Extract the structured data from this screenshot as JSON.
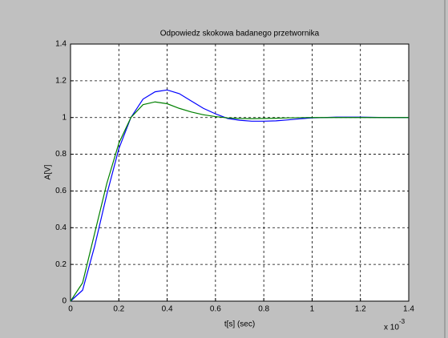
{
  "chart_data": {
    "type": "line",
    "title": "Odpowiedz skokowa badanego przetwornika",
    "x_label": "t[s] (sec)",
    "y_label": "A[V]",
    "x_exponent_base": "x 10",
    "x_exponent": "-3",
    "x": [
      0,
      0.05,
      0.1,
      0.15,
      0.2,
      0.25,
      0.3,
      0.35,
      0.4,
      0.45,
      0.5,
      0.55,
      0.6,
      0.65,
      0.7,
      0.75,
      0.8,
      0.85,
      0.9,
      0.95,
      1.0,
      1.05,
      1.1,
      1.15,
      1.2,
      1.25,
      1.3,
      1.35,
      1.4
    ],
    "series": [
      {
        "color": "#0000ff",
        "values": [
          0,
          0.06,
          0.3,
          0.58,
          0.83,
          1.0,
          1.1,
          1.14,
          1.15,
          1.13,
          1.09,
          1.05,
          1.02,
          0.995,
          0.985,
          0.98,
          0.98,
          0.982,
          0.987,
          0.993,
          0.998,
          1.0,
          1.002,
          1.002,
          1.002,
          1.001,
          1.0,
          1.0,
          1.0
        ]
      },
      {
        "color": "#008000",
        "values": [
          0,
          0.1,
          0.37,
          0.64,
          0.86,
          1.0,
          1.07,
          1.085,
          1.075,
          1.05,
          1.03,
          1.015,
          1.005,
          0.998,
          0.995,
          0.994,
          0.995,
          0.996,
          0.998,
          0.999,
          1.0,
          1.0,
          1.0,
          1.0,
          1.0,
          1.0,
          1.0,
          1.0,
          1.0
        ]
      }
    ],
    "xlim": [
      0,
      1.4
    ],
    "xticks": [
      0,
      0.2,
      0.4,
      0.6,
      0.8,
      1,
      1.2,
      1.4
    ],
    "ylim": [
      0,
      1.4
    ],
    "yticks": [
      0,
      0.2,
      0.4,
      0.6,
      0.8,
      1,
      1.2,
      1.4
    ],
    "grid": true
  }
}
